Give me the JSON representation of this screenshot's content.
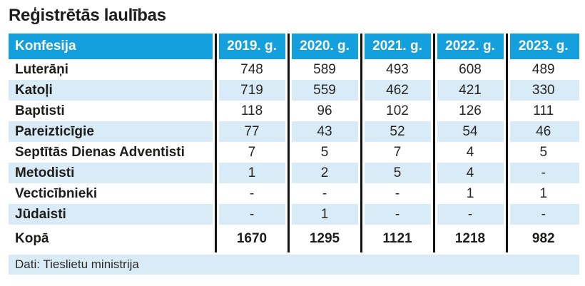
{
  "chart_data": {
    "type": "table",
    "title": "Reģistrētās laulības",
    "header": {
      "label": "Konfesija",
      "years": [
        "2019. g.",
        "2020. g.",
        "2021. g.",
        "2022. g.",
        "2023. g."
      ]
    },
    "rows": [
      {
        "label": "Luterāņi",
        "values": [
          "748",
          "589",
          "493",
          "608",
          "489"
        ]
      },
      {
        "label": "Katoļi",
        "values": [
          "719",
          "559",
          "462",
          "421",
          "330"
        ]
      },
      {
        "label": "Baptisti",
        "values": [
          "118",
          "96",
          "102",
          "126",
          "111"
        ]
      },
      {
        "label": "Pareizticīgie",
        "values": [
          "77",
          "43",
          "52",
          "54",
          "46"
        ]
      },
      {
        "label": "Septītās Dienas Adventisti",
        "values": [
          "7",
          "5",
          "7",
          "4",
          "5"
        ]
      },
      {
        "label": "Metodisti",
        "values": [
          "1",
          "2",
          "5",
          "4",
          "-"
        ]
      },
      {
        "label": "Vecticībnieki",
        "values": [
          "-",
          "-",
          "-",
          "1",
          "1"
        ]
      },
      {
        "label": "Jūdaisti",
        "values": [
          "-",
          "1",
          "-",
          "-",
          "-"
        ]
      }
    ],
    "total": {
      "label": "Kopā",
      "values": [
        "1670",
        "1295",
        "1121",
        "1218",
        "982"
      ]
    },
    "source": "Dati: Tieslietu ministrija"
  },
  "colors": {
    "header_bg": "#14a0dc",
    "stripe_bg": "#d9ebf7",
    "text": "#1d1d1b",
    "line": "#121212"
  }
}
